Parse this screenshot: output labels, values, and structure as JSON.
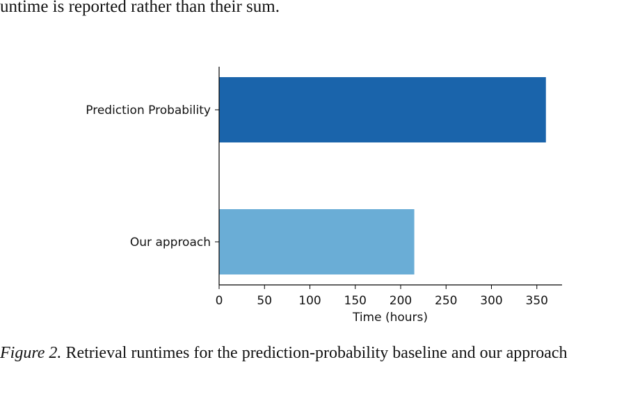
{
  "body_text_fragment": "untime is reported rather than their sum.",
  "caption": {
    "label": "Figure 2.",
    "text": "Retrieval runtimes for the prediction-probability baseline and our approach"
  },
  "chart_data": {
    "type": "bar",
    "orientation": "horizontal",
    "categories": [
      "Prediction Probability",
      "Our approach"
    ],
    "values": [
      360,
      215
    ],
    "colors": [
      "#1a64ab",
      "#6aadd6"
    ],
    "xlabel": "Time (hours)",
    "ylabel": "",
    "xlim": [
      0,
      378
    ],
    "xticks": [
      0,
      50,
      100,
      150,
      200,
      250,
      300,
      350
    ],
    "grid": false
  }
}
